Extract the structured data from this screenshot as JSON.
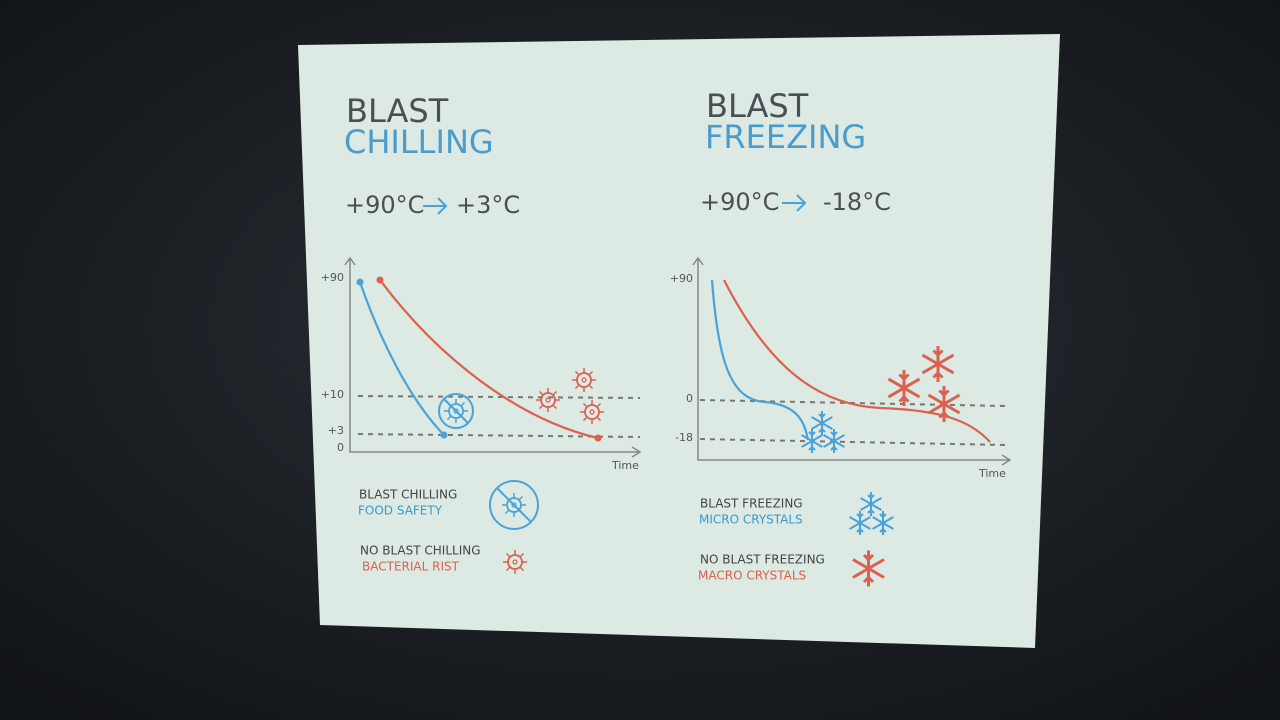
{
  "panels": [
    {
      "title_line1": "BLAST",
      "title_line2": "CHILLING",
      "range_from": "+90°C",
      "range_to": "+3°C",
      "y_ticks": [
        "+90",
        "+10",
        "+3",
        "0"
      ],
      "x_axis_label": "Time",
      "legend": [
        {
          "label": "BLAST CHILLING",
          "sublabel": "FOOD SAFETY"
        },
        {
          "label": "NO BLAST CHILLING",
          "sublabel": "BACTERIAL RIST"
        }
      ]
    },
    {
      "title_line1": "BLAST",
      "title_line2": "FREEZING",
      "range_from": "+90°C",
      "range_to": "-18°C",
      "y_ticks": [
        "+90",
        "0",
        "-18"
      ],
      "x_axis_label": "Time",
      "legend": [
        {
          "label": "BLAST FREEZING",
          "sublabel": "MICRO CRYSTALS"
        },
        {
          "label": "NO BLAST FREEZING",
          "sublabel": "MACRO CRYSTALS"
        }
      ]
    }
  ]
}
